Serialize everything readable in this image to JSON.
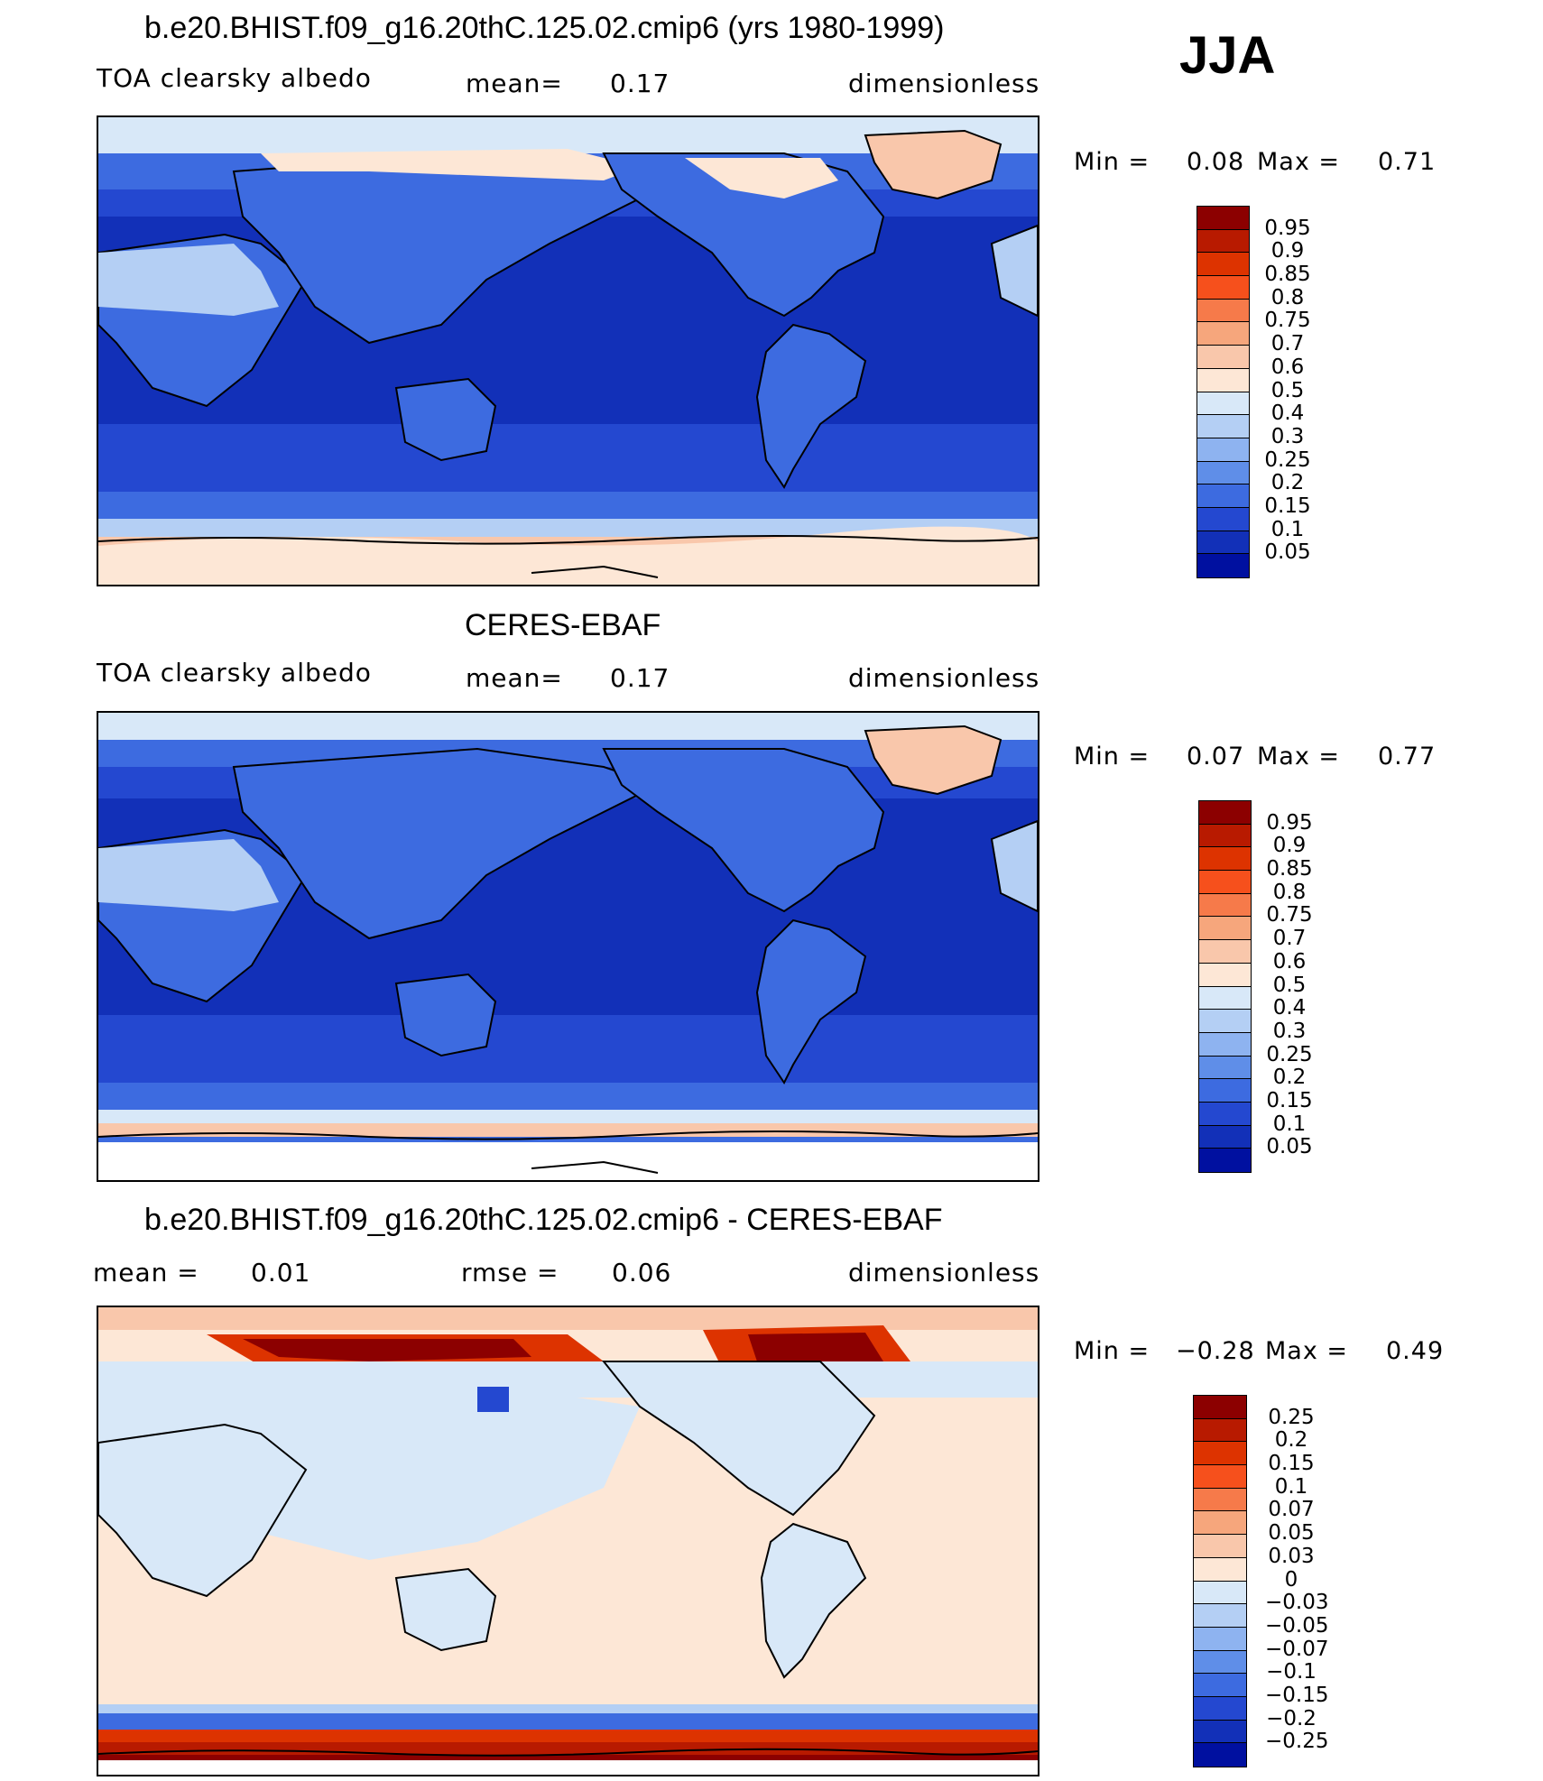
{
  "season": "JJA",
  "panels": [
    {
      "id": "model",
      "title": "b.e20.BHIST.f09_g16.20thC.125.02.cmip6 (yrs 1980-1999)",
      "left_label": "TOA clearsky albedo",
      "mean_label": "mean=",
      "mean_value": "0.17",
      "units": "dimensionless",
      "min_label": "Min =",
      "min_value": "0.08",
      "max_label": "Max =",
      "max_value": "0.71"
    },
    {
      "id": "obs",
      "title": "CERES-EBAF",
      "left_label": "TOA clearsky albedo",
      "mean_label": "mean=",
      "mean_value": "0.17",
      "units": "dimensionless",
      "min_label": "Min =",
      "min_value": "0.07",
      "max_label": "Max =",
      "max_value": "0.77"
    },
    {
      "id": "diff",
      "title": "b.e20.BHIST.f09_g16.20thC.125.02.cmip6 - CERES-EBAF",
      "mean_label": "mean =",
      "mean_value": "0.01",
      "rmse_label": "rmse =",
      "rmse_value": "0.06",
      "units": "dimensionless",
      "min_label": "Min =",
      "min_value": "−0.28",
      "max_label": "Max =",
      "max_value": "0.49"
    }
  ],
  "colorbars": {
    "abs": {
      "labels": [
        "0.95",
        "0.9",
        "0.85",
        "0.8",
        "0.75",
        "0.7",
        "0.6",
        "0.5",
        "0.4",
        "0.3",
        "0.25",
        "0.2",
        "0.15",
        "0.1",
        "0.05"
      ],
      "colors": [
        "#8c0000",
        "#b81a00",
        "#dd3300",
        "#f6501c",
        "#f67a4a",
        "#f6a67c",
        "#f9c7ab",
        "#fde7d6",
        "#d8e8f8",
        "#b4cff4",
        "#8eb3f0",
        "#5f8ee8",
        "#3d6be0",
        "#2448d0",
        "#1230b8",
        "#0010a0"
      ]
    },
    "diff": {
      "labels": [
        "0.25",
        "0.2",
        "0.15",
        "0.1",
        "0.07",
        "0.05",
        "0.03",
        "0",
        "−0.03",
        "−0.05",
        "−0.07",
        "−0.1",
        "−0.15",
        "−0.2",
        "−0.25"
      ],
      "colors": [
        "#8c0000",
        "#b81a00",
        "#dd3300",
        "#f6501c",
        "#f67a4a",
        "#f6a67c",
        "#f9c7ab",
        "#fde7d6",
        "#d8e8f8",
        "#b4cff4",
        "#8eb3f0",
        "#5f8ee8",
        "#3d6be0",
        "#2448d0",
        "#1230b8",
        "#0010a0"
      ]
    }
  },
  "field_colors": {
    "ocean_deep": "#1230b8",
    "ocean_mid": "#2448d0",
    "ocean_light": "#3d6be0",
    "land": "#3d6be0",
    "desert": "#b4cff4",
    "ice": "#f9c7ab",
    "ice_light": "#fde7d6",
    "diff_neutral_pos": "#fde7d6",
    "diff_neutral_neg": "#d8e8f8",
    "diff_hot": "#dd3300",
    "diff_hotter": "#8c0000"
  }
}
